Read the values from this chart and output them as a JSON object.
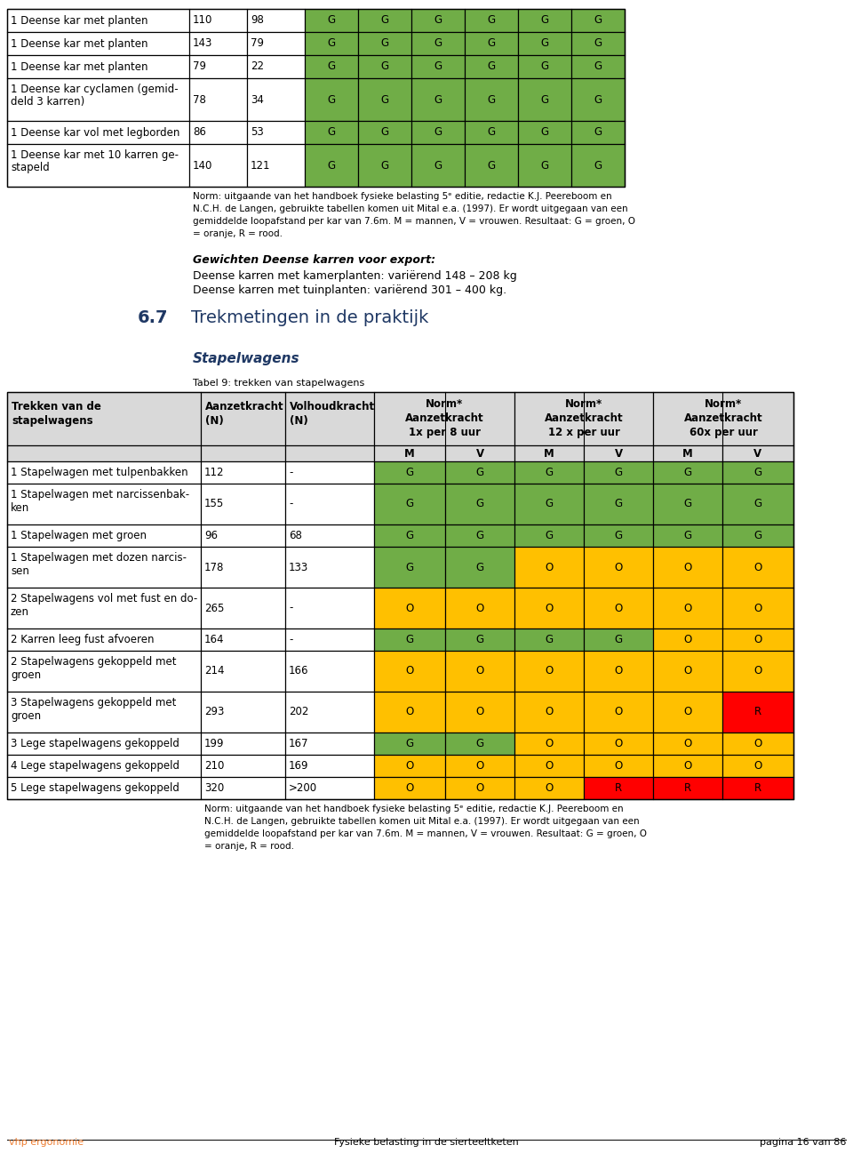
{
  "page_bg": "#ffffff",
  "table1_caption": "Norm: uitgaande van het handboek fysieke belasting 5ᵉ editie, redactie K.J. Peereboom en N.C.H. de Langen, gebruikte tabellen komen uit Mital e.a. (1997). Er wordt uitgegaan van een gemiddelde loopafstand per kar van 7.6m. M = mannen, V = vrouwen. Resultaat: G = groen, O = oranje, R = rood.",
  "table1_rows": [
    {
      "desc": "1 Deense kar met planten",
      "col2": "110",
      "col3": "98",
      "cells": [
        "G",
        "G",
        "G",
        "G",
        "G",
        "G"
      ]
    },
    {
      "desc": "1 Deense kar met planten",
      "col2": "143",
      "col3": "79",
      "cells": [
        "G",
        "G",
        "G",
        "G",
        "G",
        "G"
      ]
    },
    {
      "desc": "1 Deense kar met planten",
      "col2": "79",
      "col3": "22",
      "cells": [
        "G",
        "G",
        "G",
        "G",
        "G",
        "G"
      ]
    },
    {
      "desc": "1 Deense kar cyclamen (gemid-\ndeld 3 karren)",
      "col2": "78",
      "col3": "34",
      "cells": [
        "G",
        "G",
        "G",
        "G",
        "G",
        "G"
      ]
    },
    {
      "desc": "1 Deense kar vol met legborden",
      "col2": "86",
      "col3": "53",
      "cells": [
        "G",
        "G",
        "G",
        "G",
        "G",
        "G"
      ]
    },
    {
      "desc": "1 Deense kar met 10 karren ge-\nstapeld",
      "col2": "140",
      "col3": "121",
      "cells": [
        "G",
        "G",
        "G",
        "G",
        "G",
        "G"
      ]
    }
  ],
  "section_num": "6.7",
  "section_title": "Trekmetingen in de praktijk",
  "subsection_title": "Stapelwagens",
  "table2_caption_label": "Tabel 9: trekken van stapelwagens",
  "table2_rows": [
    {
      "desc": "1 Stapelwagen met tulpenbakken",
      "col2": "112",
      "col3": "-",
      "cells": [
        "G",
        "G",
        "G",
        "G",
        "G",
        "G"
      ]
    },
    {
      "desc": "1 Stapelwagen met narcissenbak-\nken",
      "col2": "155",
      "col3": "-",
      "cells": [
        "G",
        "G",
        "G",
        "G",
        "G",
        "G"
      ]
    },
    {
      "desc": "1 Stapelwagen met groen",
      "col2": "96",
      "col3": "68",
      "cells": [
        "G",
        "G",
        "G",
        "G",
        "G",
        "G"
      ]
    },
    {
      "desc": "1 Stapelwagen met dozen narcis-\nsen",
      "col2": "178",
      "col3": "133",
      "cells": [
        "G",
        "G",
        "O",
        "O",
        "O",
        "O"
      ]
    },
    {
      "desc": "2 Stapelwagens vol met fust en do-\nzen",
      "col2": "265",
      "col3": "-",
      "cells": [
        "O",
        "O",
        "O",
        "O",
        "O",
        "O"
      ]
    },
    {
      "desc": "2 Karren leeg fust afvoeren",
      "col2": "164",
      "col3": "-",
      "cells": [
        "G",
        "G",
        "G",
        "G",
        "O",
        "O"
      ]
    },
    {
      "desc": "2 Stapelwagens gekoppeld met\ngroen",
      "col2": "214",
      "col3": "166",
      "cells": [
        "O",
        "O",
        "O",
        "O",
        "O",
        "O"
      ]
    },
    {
      "desc": "3 Stapelwagens gekoppeld met\ngroen",
      "col2": "293",
      "col3": "202",
      "cells": [
        "O",
        "O",
        "O",
        "O",
        "O",
        "R"
      ]
    },
    {
      "desc": "3 Lege stapelwagens gekoppeld",
      "col2": "199",
      "col3": "167",
      "cells": [
        "G",
        "G",
        "O",
        "O",
        "O",
        "O"
      ]
    },
    {
      "desc": "4 Lege stapelwagens gekoppeld",
      "col2": "210",
      "col3": "169",
      "cells": [
        "O",
        "O",
        "O",
        "O",
        "O",
        "O"
      ]
    },
    {
      "desc": "5 Lege stapelwagens gekoppeld",
      "col2": "320",
      "col3": ">200",
      "cells": [
        "O",
        "O",
        "O",
        "R",
        "R",
        "R"
      ]
    }
  ],
  "table2_caption": "Norm: uitgaande van het handboek fysieke belasting 5ᵉ editie, redactie K.J. Peereboom en N.C.H. de Langen, gebruikte tabellen komen uit Mital e.a. (1997). Er wordt uitgegaan van een gemiddelde loopafstand per kar van 7.6m. M = mannen, V = vrouwen. Resultaat: G = groen, O = oranje, R = rood.",
  "green_color": "#70ad47",
  "orange_color": "#ffc000",
  "red_color": "#ff0000",
  "header_bg": "#d9d9d9",
  "white_bg": "#ffffff",
  "border_color": "#000000",
  "blue_title_color": "#1f3864",
  "footer_orange": "#ed7d31",
  "footer_text": "vhp ergonomie",
  "footer_center": "Fysieke belasting in de sierteeltketen",
  "footer_right": "pagina 16 van 86",
  "gewichten_title": "Gewichten Deense karren voor export:",
  "gewichten_text1": "Deense karren met kamerplanten: variërend 148 – 208 kg",
  "gewichten_text2": "Deense karren met tuinplanten: variërend 301 – 400 kg."
}
